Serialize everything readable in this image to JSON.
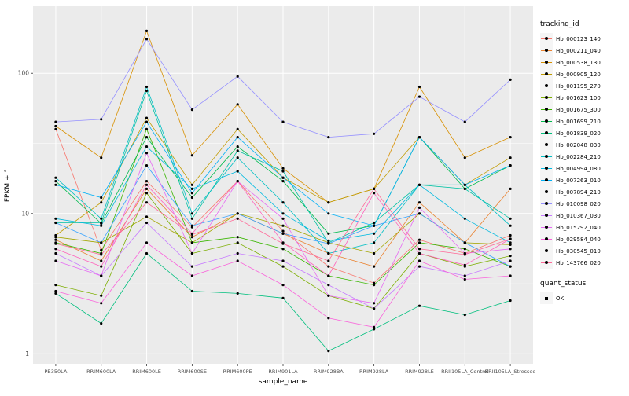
{
  "chart_data": {
    "type": "line",
    "title": "",
    "xlabel": "sample_name",
    "ylabel": "FPKM + 1",
    "y_scale": "log10",
    "ylim": [
      0.85,
      300
    ],
    "y_ticks": [
      1,
      10,
      100
    ],
    "y_minor_ticks": [
      3.162,
      31.62
    ],
    "grid": true,
    "panel_bg": "#EBEBEB",
    "grid_color": "#FFFFFF",
    "point_color": "#000000",
    "tick_label_color": "#4D4D4D",
    "legend_position": "right",
    "categories": [
      "PB350LA",
      "RRIM600LA",
      "RRIM600LE",
      "RRIM600SE",
      "RRIM600PE",
      "RRIM901LA",
      "RRIM928BA",
      "RRIM928LA",
      "RRIM928LE",
      "RRII105LA_Control",
      "RRII105LA_Stressed"
    ],
    "series": [
      {
        "name": "Hb_000123_140",
        "color": "#F8766D",
        "values": [
          40,
          5.5,
          17,
          8,
          17,
          7.5,
          4.2,
          3.2,
          6.5,
          5.2,
          7
        ]
      },
      {
        "name": "Hb_000211_040",
        "color": "#EA8331",
        "values": [
          6.5,
          4.6,
          15,
          6.8,
          10,
          7.2,
          5.2,
          4.2,
          12,
          6.2,
          15
        ]
      },
      {
        "name": "Hb_000538_130",
        "color": "#D89000",
        "values": [
          42,
          25,
          200,
          26,
          60,
          21,
          12,
          15,
          80,
          25,
          35
        ]
      },
      {
        "name": "Hb_000905_120",
        "color": "#C09B00",
        "values": [
          7,
          12,
          48,
          16,
          40,
          18,
          12,
          15,
          35,
          16,
          25
        ]
      },
      {
        "name": "Hb_001195_270",
        "color": "#A3A500",
        "values": [
          6.8,
          6.2,
          9.5,
          6.2,
          10,
          8.2,
          6.2,
          5.2,
          10,
          6.2,
          6
        ]
      },
      {
        "name": "Hb_001623_100",
        "color": "#7CAE00",
        "values": [
          3.1,
          2.6,
          14,
          5.2,
          6.2,
          4.2,
          2.6,
          2.1,
          5.2,
          4.2,
          5
        ]
      },
      {
        "name": "Hb_001675_300",
        "color": "#39B600",
        "values": [
          6.2,
          5.2,
          40,
          6.2,
          6.8,
          5.6,
          3.6,
          3.1,
          6.2,
          5.6,
          4.2
        ]
      },
      {
        "name": "Hb_001699_210",
        "color": "#00BB4E",
        "values": [
          17,
          8.5,
          35,
          13,
          30,
          17,
          7.2,
          8.2,
          35,
          15,
          22
        ]
      },
      {
        "name": "Hb_001839_020",
        "color": "#00BF7D",
        "values": [
          2.7,
          1.65,
          5.2,
          2.8,
          2.7,
          2.5,
          1.05,
          1.5,
          2.2,
          1.9,
          2.4
        ]
      },
      {
        "name": "Hb_002048_030",
        "color": "#00C1A3",
        "values": [
          8.6,
          8.6,
          75,
          9.2,
          28,
          20,
          6.2,
          8.6,
          16,
          15,
          9.2
        ]
      },
      {
        "name": "Hb_002284_210",
        "color": "#00BFC4",
        "values": [
          18,
          9.2,
          80,
          10,
          25,
          12,
          5.2,
          6.2,
          16,
          16,
          8.2
        ]
      },
      {
        "name": "Hb_004994_080",
        "color": "#00BAE0",
        "values": [
          9.2,
          8.2,
          30,
          15,
          20,
          10,
          6.4,
          7.2,
          16,
          9.2,
          6.2
        ]
      },
      {
        "name": "Hb_007263_010",
        "color": "#00B0F6",
        "values": [
          16,
          13,
          45,
          14,
          35,
          18,
          10,
          8.2,
          35,
          16,
          22
        ]
      },
      {
        "name": "Hb_007894_210",
        "color": "#35A2FF",
        "values": [
          8.6,
          6.2,
          22,
          8.2,
          10,
          7.2,
          6.1,
          8.2,
          10,
          6.2,
          4.2
        ]
      },
      {
        "name": "Hb_010098_020",
        "color": "#9590FF",
        "values": [
          45,
          47,
          175,
          55,
          95,
          45,
          35,
          37,
          68,
          45,
          90
        ]
      },
      {
        "name": "Hb_010367_030",
        "color": "#C77CFF",
        "values": [
          5.2,
          3.6,
          8.6,
          4.2,
          5.2,
          4.6,
          3.1,
          2.1,
          4.2,
          3.6,
          4.6
        ]
      },
      {
        "name": "Hb_015292_040",
        "color": "#E76BF3",
        "values": [
          4.6,
          3.6,
          27,
          5.2,
          17,
          9.2,
          2.6,
          2.3,
          11,
          5.2,
          5.6
        ]
      },
      {
        "name": "Hb_029584_040",
        "color": "#FA62DB",
        "values": [
          2.8,
          2.3,
          6.2,
          3.6,
          4.6,
          3.1,
          1.8,
          1.55,
          4.6,
          3.4,
          3.6
        ]
      },
      {
        "name": "Hb_030545_010",
        "color": "#FF62BC",
        "values": [
          5.6,
          4.2,
          16,
          7.2,
          17,
          6.2,
          3.6,
          14,
          5.2,
          4.3,
          6.6
        ]
      },
      {
        "name": "Hb_143766_020",
        "color": "#FF6A98",
        "values": [
          6.1,
          5.1,
          12,
          7.1,
          9.2,
          6.1,
          4.6,
          15,
          5.6,
          5.1,
          6.6
        ]
      }
    ]
  },
  "axes": {
    "x_title": "sample_name",
    "y_title": "FPKM + 1"
  },
  "legend": {
    "title": "tracking_id",
    "quant_title": "quant_status",
    "quant_items": [
      {
        "label": "OK"
      }
    ]
  }
}
